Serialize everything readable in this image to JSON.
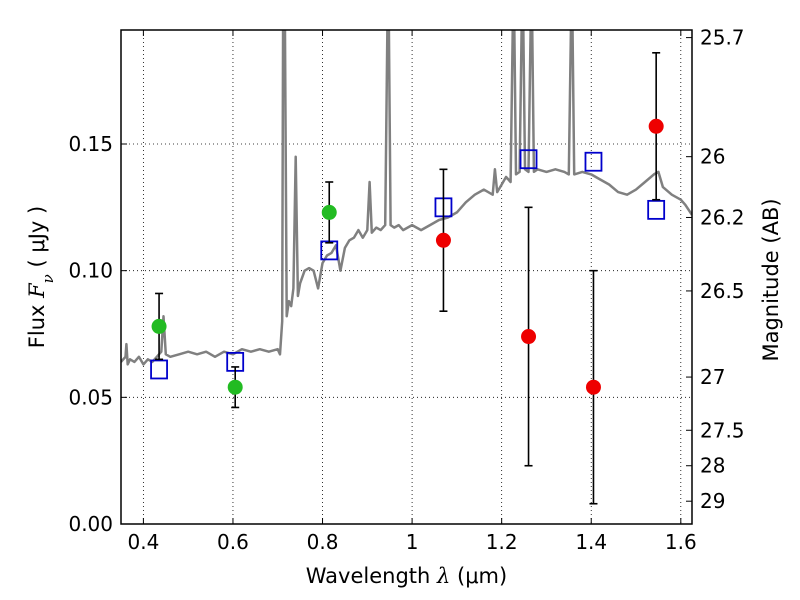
{
  "chart_data": {
    "type": "scatter",
    "xlabel": {
      "prefix": "Wavelength  ",
      "symbol": "λ",
      "units": " (μm)"
    },
    "ylabel": {
      "prefix": "Flux  ",
      "symbol": "F",
      "subscript": "ν",
      "units": "  ( μJy )"
    },
    "y2label": "Magnitude (AB)",
    "xlim": [
      0.35,
      1.625
    ],
    "ylim": [
      0.0,
      0.195
    ],
    "grid": true,
    "x_ticks": [
      {
        "value": 0.4,
        "label": "0.4"
      },
      {
        "value": 0.6,
        "label": "0.6"
      },
      {
        "value": 0.8,
        "label": "0.8"
      },
      {
        "value": 1.0,
        "label": "1"
      },
      {
        "value": 1.2,
        "label": "1.2"
      },
      {
        "value": 1.4,
        "label": "1.4"
      },
      {
        "value": 1.6,
        "label": "1.6"
      }
    ],
    "y_ticks": [
      {
        "value": 0.0,
        "label": "0.00"
      },
      {
        "value": 0.05,
        "label": "0.05"
      },
      {
        "value": 0.1,
        "label": "0.10"
      },
      {
        "value": 0.15,
        "label": "0.15"
      }
    ],
    "y2_ticks": [
      {
        "flux": 0.192,
        "label": "25.7"
      },
      {
        "flux": 0.145,
        "label": "26"
      },
      {
        "flux": 0.121,
        "label": "26.2"
      },
      {
        "flux": 0.092,
        "label": "26.5"
      },
      {
        "flux": 0.058,
        "label": "27"
      },
      {
        "flux": 0.037,
        "label": "27.5"
      },
      {
        "flux": 0.023,
        "label": "28"
      },
      {
        "flux": 0.009,
        "label": "29"
      }
    ],
    "series": [
      {
        "kind": "model",
        "color": "#808080",
        "points": [
          [
            0.35,
            0.064
          ],
          [
            0.36,
            0.066
          ],
          [
            0.362,
            0.071
          ],
          [
            0.365,
            0.063
          ],
          [
            0.37,
            0.065
          ],
          [
            0.38,
            0.064
          ],
          [
            0.39,
            0.066
          ],
          [
            0.4,
            0.063
          ],
          [
            0.41,
            0.065
          ],
          [
            0.42,
            0.064
          ],
          [
            0.43,
            0.066
          ],
          [
            0.44,
            0.068
          ],
          [
            0.445,
            0.082
          ],
          [
            0.45,
            0.067
          ],
          [
            0.46,
            0.066
          ],
          [
            0.48,
            0.067
          ],
          [
            0.5,
            0.068
          ],
          [
            0.52,
            0.067
          ],
          [
            0.54,
            0.068
          ],
          [
            0.56,
            0.066
          ],
          [
            0.58,
            0.068
          ],
          [
            0.6,
            0.067
          ],
          [
            0.62,
            0.069
          ],
          [
            0.64,
            0.068
          ],
          [
            0.66,
            0.069
          ],
          [
            0.68,
            0.068
          ],
          [
            0.7,
            0.069
          ],
          [
            0.705,
            0.067
          ],
          [
            0.71,
            0.08
          ],
          [
            0.712,
            0.2
          ],
          [
            0.716,
            0.2
          ],
          [
            0.72,
            0.082
          ],
          [
            0.725,
            0.088
          ],
          [
            0.73,
            0.086
          ],
          [
            0.735,
            0.093
          ],
          [
            0.74,
            0.145
          ],
          [
            0.745,
            0.09
          ],
          [
            0.75,
            0.095
          ],
          [
            0.76,
            0.1
          ],
          [
            0.77,
            0.101
          ],
          [
            0.78,
            0.1
          ],
          [
            0.79,
            0.093
          ],
          [
            0.8,
            0.103
          ],
          [
            0.81,
            0.106
          ],
          [
            0.82,
            0.107
          ],
          [
            0.83,
            0.11
          ],
          [
            0.835,
            0.105
          ],
          [
            0.84,
            0.1
          ],
          [
            0.85,
            0.109
          ],
          [
            0.86,
            0.112
          ],
          [
            0.87,
            0.113
          ],
          [
            0.88,
            0.116
          ],
          [
            0.89,
            0.113
          ],
          [
            0.9,
            0.116
          ],
          [
            0.905,
            0.135
          ],
          [
            0.91,
            0.115
          ],
          [
            0.92,
            0.117
          ],
          [
            0.93,
            0.116
          ],
          [
            0.94,
            0.118
          ],
          [
            0.945,
            0.2
          ],
          [
            0.948,
            0.2
          ],
          [
            0.952,
            0.118
          ],
          [
            0.96,
            0.117
          ],
          [
            0.97,
            0.118
          ],
          [
            0.98,
            0.116
          ],
          [
            0.99,
            0.117
          ],
          [
            1.0,
            0.118
          ],
          [
            1.02,
            0.116
          ],
          [
            1.04,
            0.118
          ],
          [
            1.06,
            0.12
          ],
          [
            1.08,
            0.121
          ],
          [
            1.1,
            0.123
          ],
          [
            1.12,
            0.127
          ],
          [
            1.14,
            0.13
          ],
          [
            1.16,
            0.132
          ],
          [
            1.18,
            0.13
          ],
          [
            1.185,
            0.14
          ],
          [
            1.19,
            0.131
          ],
          [
            1.2,
            0.134
          ],
          [
            1.21,
            0.137
          ],
          [
            1.22,
            0.135
          ],
          [
            1.225,
            0.2
          ],
          [
            1.228,
            0.2
          ],
          [
            1.232,
            0.138
          ],
          [
            1.24,
            0.139
          ],
          [
            1.245,
            0.2
          ],
          [
            1.248,
            0.2
          ],
          [
            1.252,
            0.14
          ],
          [
            1.26,
            0.139
          ],
          [
            1.265,
            0.2
          ],
          [
            1.268,
            0.2
          ],
          [
            1.272,
            0.139
          ],
          [
            1.28,
            0.14
          ],
          [
            1.3,
            0.139
          ],
          [
            1.32,
            0.14
          ],
          [
            1.34,
            0.139
          ],
          [
            1.35,
            0.138
          ],
          [
            1.355,
            0.2
          ],
          [
            1.358,
            0.2
          ],
          [
            1.362,
            0.138
          ],
          [
            1.38,
            0.139
          ],
          [
            1.4,
            0.138
          ],
          [
            1.42,
            0.136
          ],
          [
            1.44,
            0.134
          ],
          [
            1.46,
            0.131
          ],
          [
            1.48,
            0.13
          ],
          [
            1.5,
            0.132
          ],
          [
            1.52,
            0.135
          ],
          [
            1.54,
            0.138
          ],
          [
            1.55,
            0.139
          ],
          [
            1.56,
            0.133
          ],
          [
            1.58,
            0.13
          ],
          [
            1.6,
            0.128
          ],
          [
            1.61,
            0.126
          ],
          [
            1.625,
            0.122
          ]
        ]
      },
      {
        "kind": "model-points",
        "marker": "square",
        "color": "#0000cc",
        "points": [
          [
            0.435,
            0.061
          ],
          [
            0.605,
            0.064
          ],
          [
            0.815,
            0.108
          ],
          [
            1.07,
            0.125
          ],
          [
            1.26,
            0.144
          ],
          [
            1.405,
            0.143
          ],
          [
            1.545,
            0.124
          ]
        ]
      },
      {
        "kind": "observed",
        "marker": "circle",
        "color": "#22bb22",
        "points": [
          {
            "x": 0.435,
            "y": 0.078,
            "err": 0.013
          },
          {
            "x": 0.605,
            "y": 0.054,
            "err": 0.008
          },
          {
            "x": 0.815,
            "y": 0.123,
            "err": 0.012
          }
        ]
      },
      {
        "kind": "observed",
        "marker": "circle",
        "color": "#ee0000",
        "points": [
          {
            "x": 1.07,
            "y": 0.112,
            "err": 0.028
          },
          {
            "x": 1.26,
            "y": 0.074,
            "err": 0.051
          },
          {
            "x": 1.405,
            "y": 0.054,
            "err": 0.046
          },
          {
            "x": 1.545,
            "y": 0.157,
            "err": 0.029
          }
        ]
      }
    ]
  }
}
